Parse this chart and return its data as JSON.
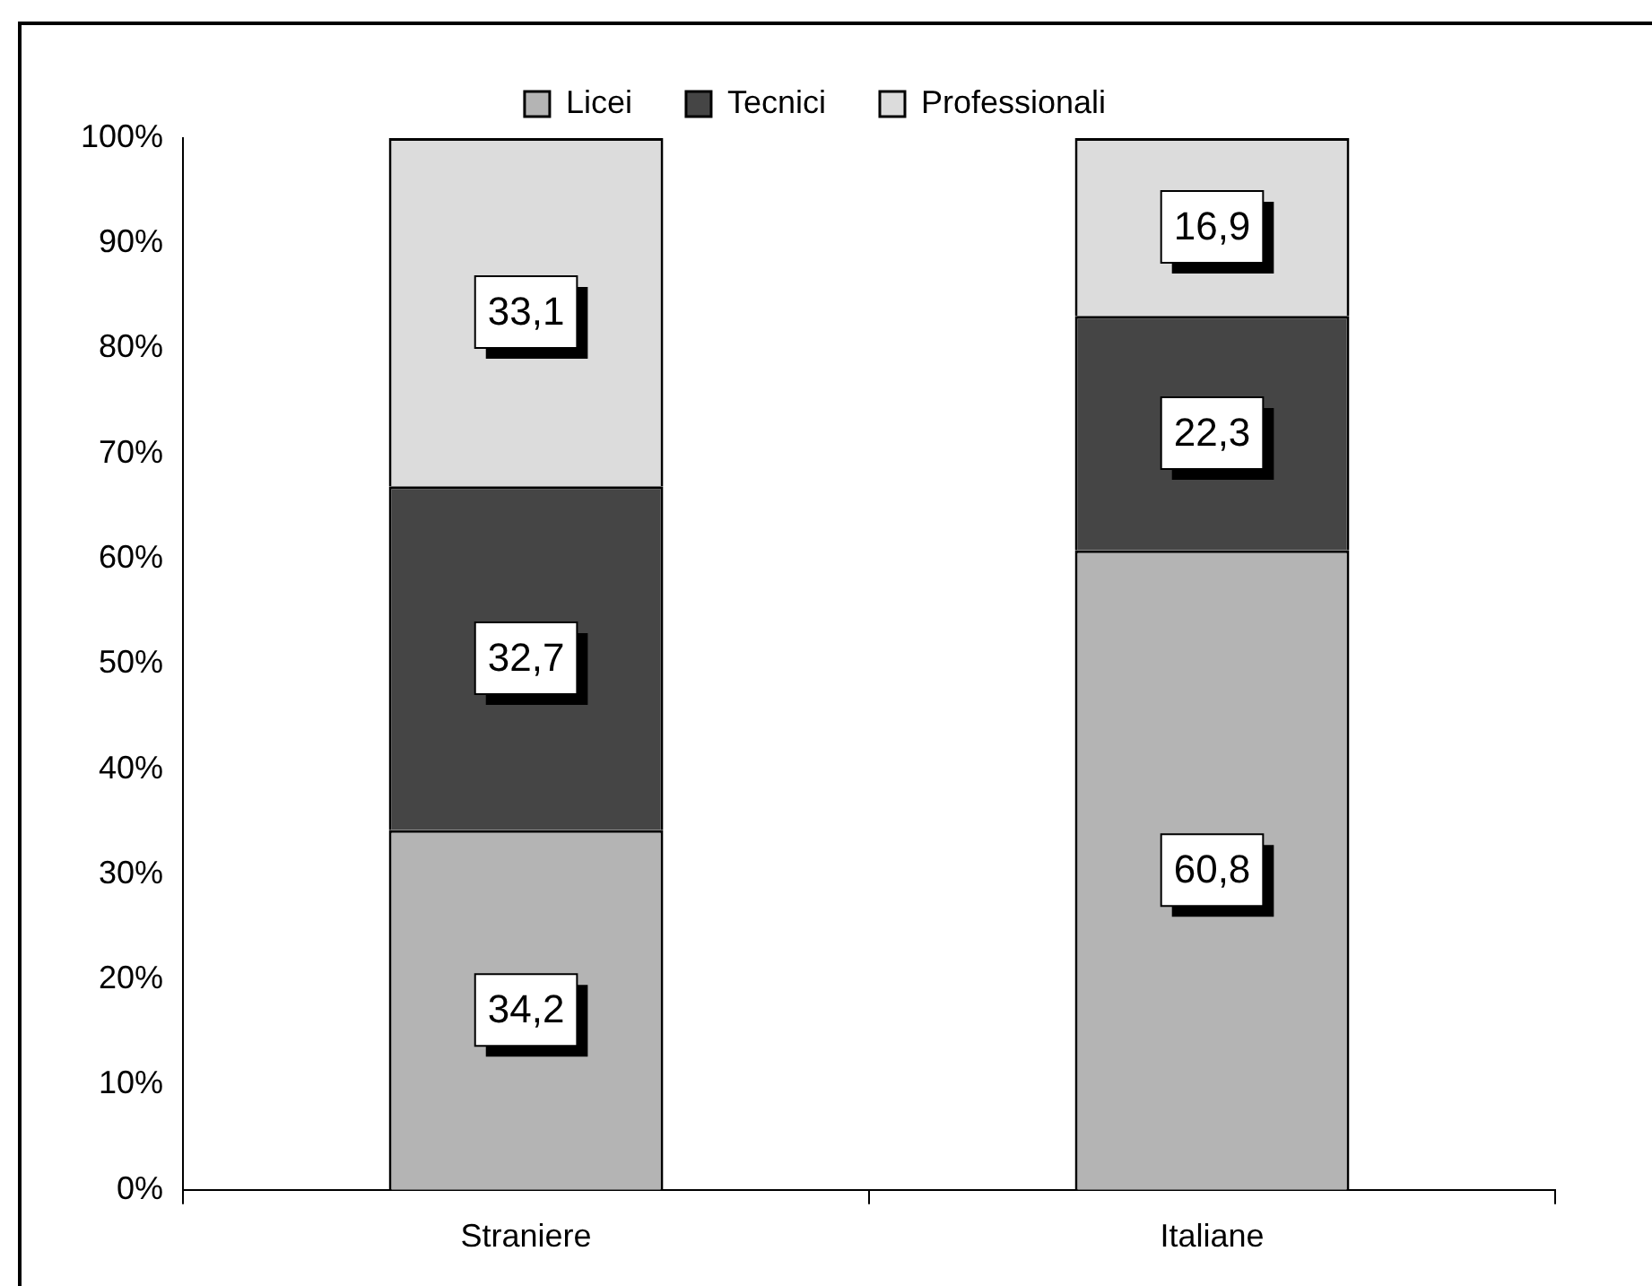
{
  "chart_data": {
    "type": "bar",
    "stacked": true,
    "categories": [
      "Straniere",
      "Italiane"
    ],
    "series": [
      {
        "name": "Licei",
        "color": "#b4b4b4",
        "values": [
          34.2,
          60.8
        ],
        "value_labels": [
          "34,2",
          "60,8"
        ]
      },
      {
        "name": "Tecnici",
        "color": "#454545",
        "values": [
          32.7,
          22.3
        ],
        "value_labels": [
          "32,7",
          "22,3"
        ]
      },
      {
        "name": "Professionali",
        "color": "#dcdcdc",
        "values": [
          33.1,
          16.9
        ],
        "value_labels": [
          "33,1",
          "16,9"
        ]
      }
    ],
    "ylim": [
      0,
      100
    ],
    "yticks": [
      {
        "value": 0,
        "label": "0%"
      },
      {
        "value": 10,
        "label": "10%"
      },
      {
        "value": 20,
        "label": "20%"
      },
      {
        "value": 30,
        "label": "30%"
      },
      {
        "value": 40,
        "label": "40%"
      },
      {
        "value": 50,
        "label": "50%"
      },
      {
        "value": 60,
        "label": "60%"
      },
      {
        "value": 70,
        "label": "70%"
      },
      {
        "value": 80,
        "label": "80%"
      },
      {
        "value": 90,
        "label": "90%"
      },
      {
        "value": 100,
        "label": "100%"
      }
    ],
    "grid": false,
    "legend": "top"
  }
}
